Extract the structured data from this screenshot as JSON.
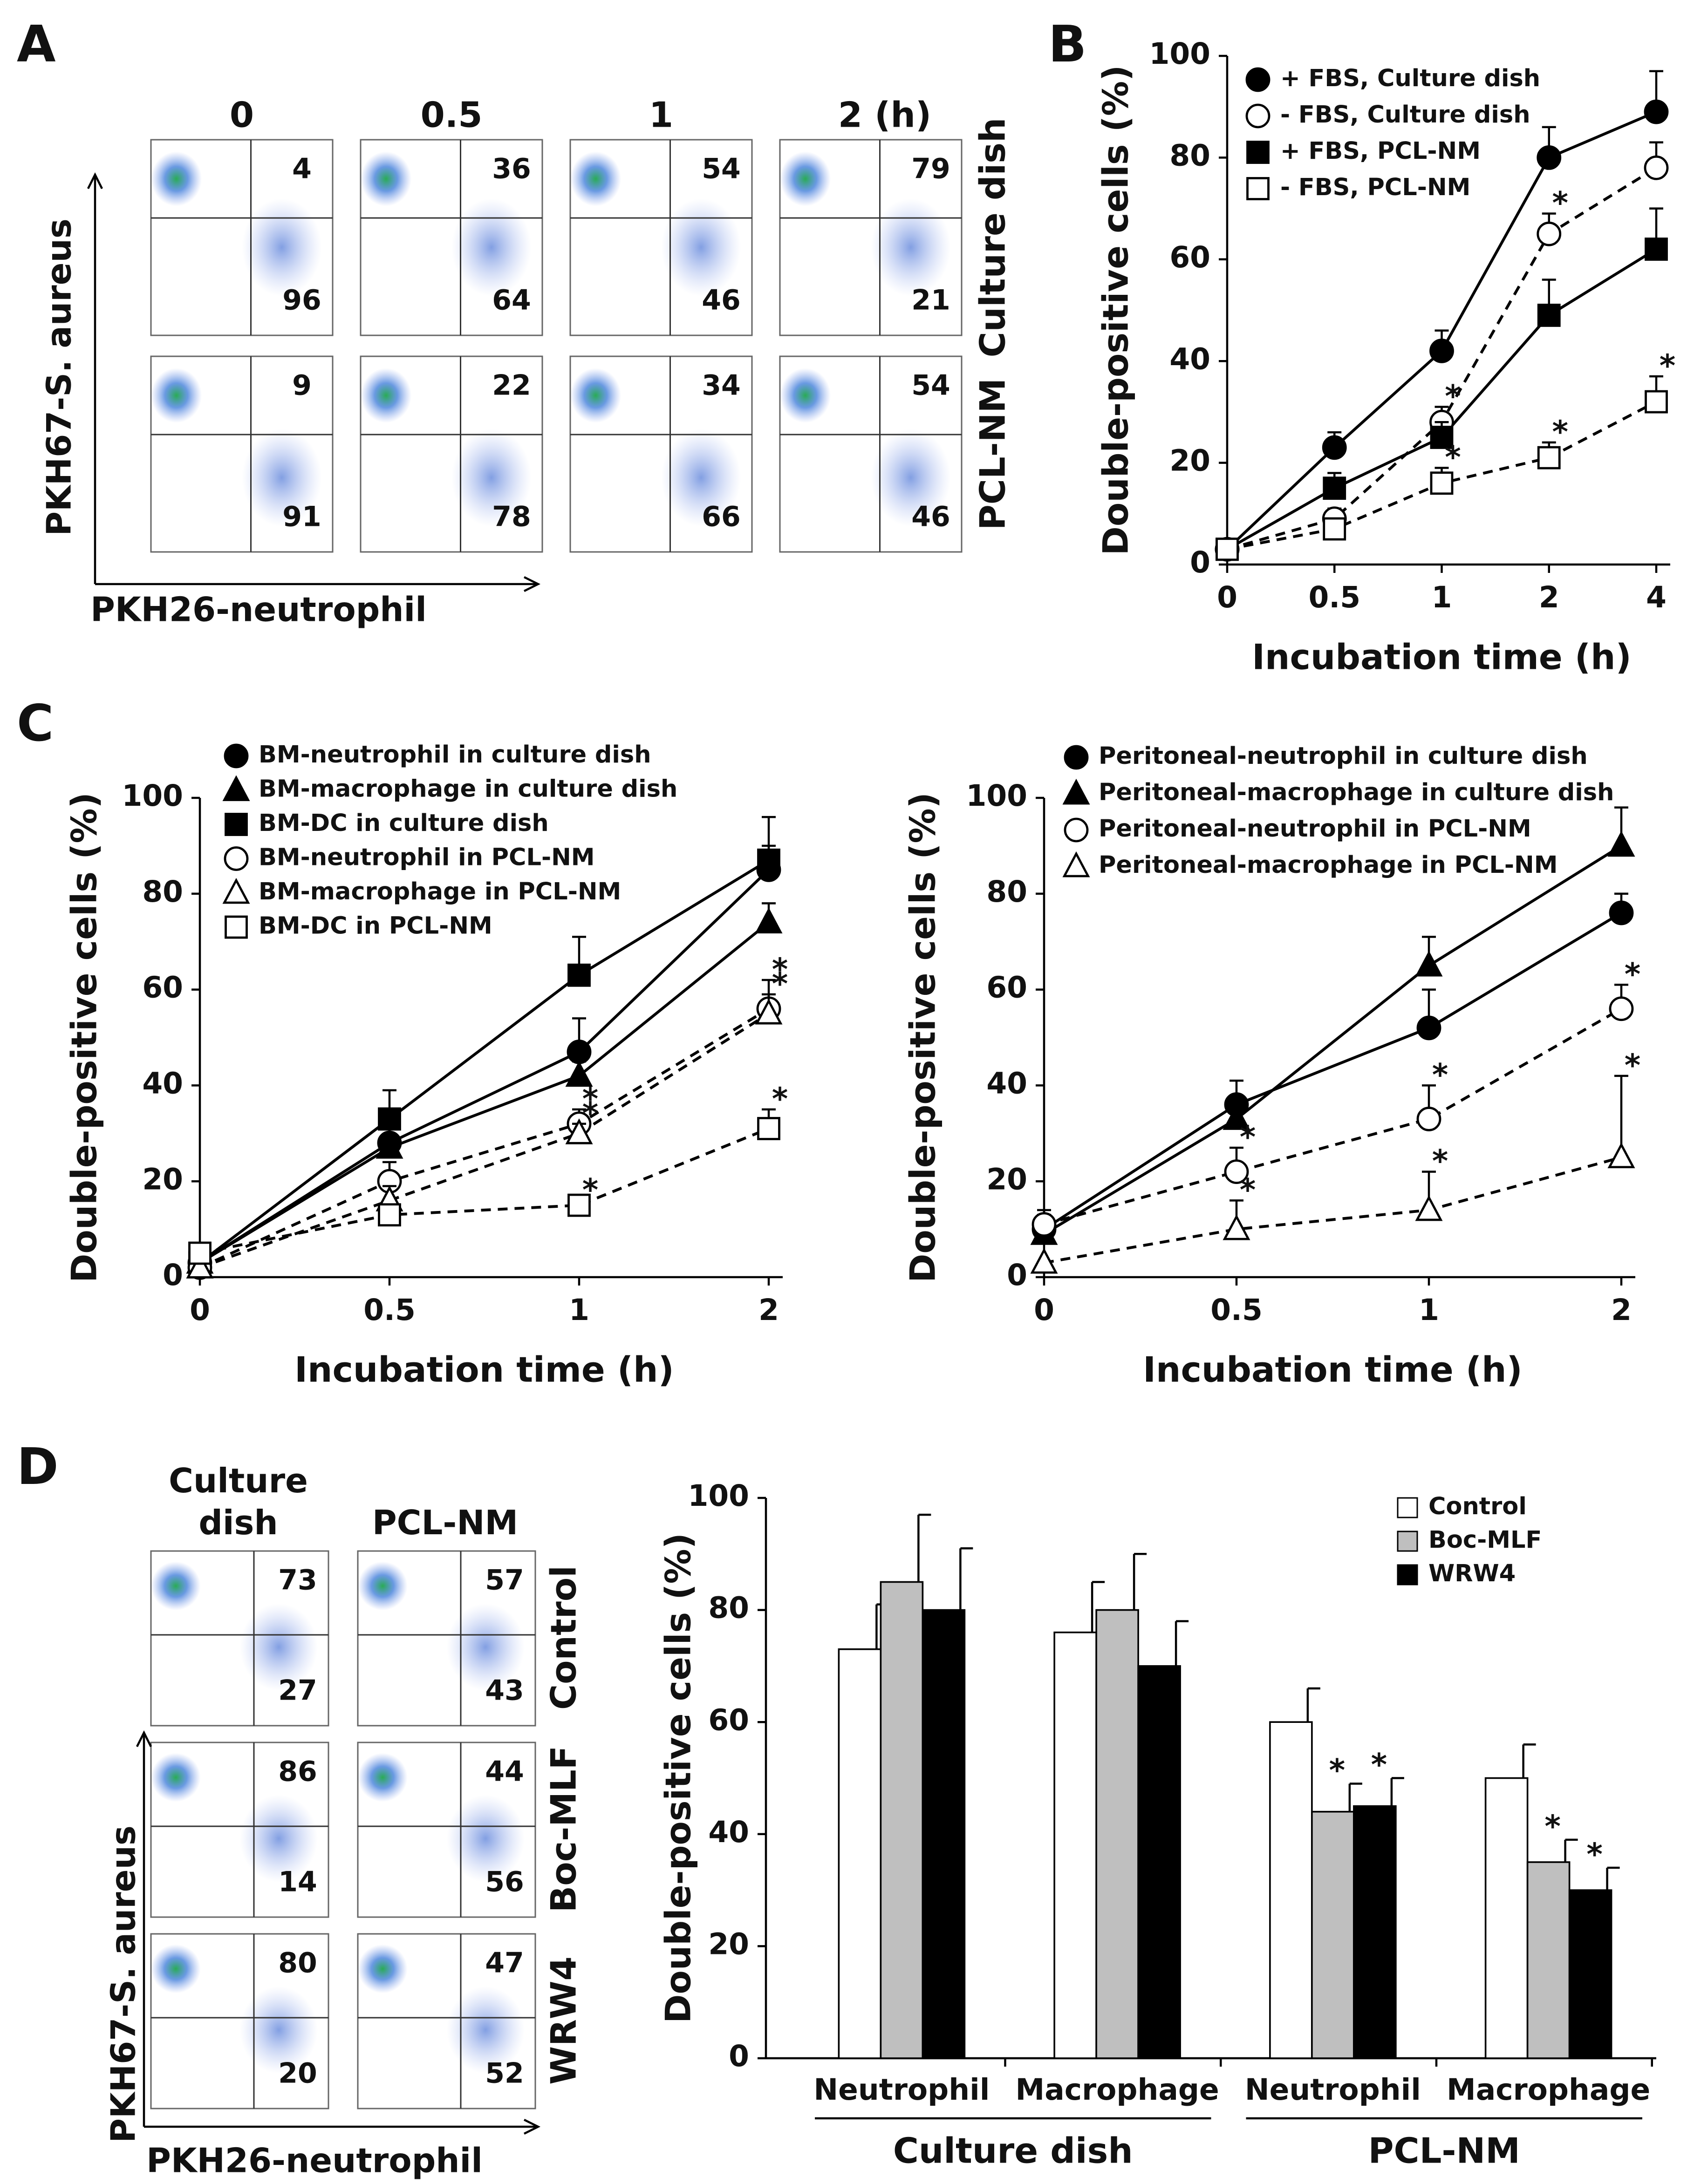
{
  "panel_labels": [
    "A",
    "B",
    "C",
    "D"
  ],
  "panel_a": {
    "columns": [
      "0",
      "0.5",
      "1",
      "2 (h)"
    ],
    "rows": [
      "Culture dish",
      "PCL-NM"
    ],
    "upper": [
      [
        4,
        36,
        54,
        79
      ],
      [
        9,
        22,
        34,
        54
      ]
    ],
    "lower": [
      [
        96,
        64,
        46,
        21
      ],
      [
        91,
        78,
        66,
        46
      ]
    ],
    "ylabel": "PKH67-S. aureus",
    "xlabel": "PKH26-neutrophil"
  },
  "panel_d_flow": {
    "columns": [
      "Culture dish",
      "PCL-NM"
    ],
    "rows": [
      "Control",
      "Boc-MLF",
      "WRW4"
    ],
    "upper": [
      [
        73,
        57
      ],
      [
        86,
        44
      ],
      [
        80,
        47
      ]
    ],
    "lower": [
      [
        27,
        43
      ],
      [
        14,
        56
      ],
      [
        20,
        52
      ]
    ],
    "ylabel": "PKH67-S. aureus",
    "xlabel": "PKH26-neutrophil"
  },
  "chart_data": [
    {
      "type": "line",
      "xlabel": "Incubation time (h)",
      "ylabel": "Double-positive cells (%)",
      "categories": [
        "0",
        "0.5",
        "1",
        "2",
        "4"
      ],
      "ylim": [
        0,
        100
      ],
      "yticks": [
        0,
        20,
        40,
        60,
        80,
        100
      ],
      "series": [
        {
          "name": "+ FBS, Culture dish",
          "color": "#000000",
          "marker": "circle",
          "filled": true,
          "dashed": false,
          "values": [
            3,
            23,
            42,
            80,
            89
          ],
          "errors": [
            0,
            3,
            4,
            6,
            8
          ]
        },
        {
          "name": "- FBS, Culture dish",
          "color": "#000000",
          "marker": "circle",
          "filled": false,
          "dashed": true,
          "values": [
            3,
            9,
            28,
            65,
            78
          ],
          "errors": [
            0,
            2,
            3,
            4,
            5
          ]
        },
        {
          "name": "+ FBS, PCL-NM",
          "color": "#000000",
          "marker": "square",
          "filled": true,
          "dashed": false,
          "values": [
            3,
            15,
            25,
            49,
            62
          ],
          "errors": [
            0,
            3,
            3,
            7,
            8
          ]
        },
        {
          "name": "- FBS, PCL-NM",
          "color": "#000000",
          "marker": "square",
          "filled": false,
          "dashed": true,
          "values": [
            3,
            7,
            16,
            21,
            32
          ],
          "errors": [
            0,
            2,
            3,
            3,
            5
          ]
        }
      ],
      "annotations": [
        {
          "text": "*",
          "series": 1,
          "index": 2
        },
        {
          "text": "*",
          "series": 3,
          "index": 2
        },
        {
          "text": "*",
          "series": 1,
          "index": 3
        },
        {
          "text": "*",
          "series": 3,
          "index": 3
        },
        {
          "text": "*",
          "series": 3,
          "index": 4
        }
      ]
    },
    {
      "type": "line",
      "xlabel": "Incubation time (h)",
      "ylabel": "Double-positive cells (%)",
      "categories": [
        "0",
        "0.5",
        "1",
        "2"
      ],
      "ylim": [
        0,
        100
      ],
      "yticks": [
        0,
        20,
        40,
        60,
        80,
        100
      ],
      "series": [
        {
          "name": "BM-neutrophil in culture dish",
          "color": "#000000",
          "marker": "circle",
          "filled": true,
          "dashed": false,
          "values": [
            3,
            28,
            47,
            85
          ],
          "errors": [
            0,
            4,
            7,
            5
          ]
        },
        {
          "name": "BM-macrophage in culture dish",
          "color": "#000000",
          "marker": "triangle",
          "filled": true,
          "dashed": false,
          "values": [
            3,
            27,
            42,
            74
          ],
          "errors": [
            0,
            4,
            3,
            4
          ]
        },
        {
          "name": "BM-DC in culture dish",
          "color": "#000000",
          "marker": "square",
          "filled": true,
          "dashed": false,
          "values": [
            3,
            33,
            63,
            87
          ],
          "errors": [
            0,
            6,
            8,
            9
          ]
        },
        {
          "name": "BM-neutrophil in PCL-NM",
          "color": "#000000",
          "marker": "circle",
          "filled": false,
          "dashed": true,
          "values": [
            2,
            20,
            32,
            56
          ],
          "errors": [
            0,
            4,
            3,
            6
          ]
        },
        {
          "name": "BM-macrophage in PCL-NM",
          "color": "#000000",
          "marker": "triangle",
          "filled": false,
          "dashed": true,
          "values": [
            2,
            16,
            30,
            55
          ],
          "errors": [
            0,
            3,
            2,
            4
          ]
        },
        {
          "name": "BM-DC in PCL-NM",
          "color": "#000000",
          "marker": "square",
          "filled": false,
          "dashed": true,
          "values": [
            5,
            13,
            15,
            31
          ],
          "errors": [
            0,
            2,
            1,
            4
          ]
        }
      ],
      "annotations": [
        {
          "text": "*",
          "series": 3,
          "index": 2
        },
        {
          "text": "*",
          "series": 4,
          "index": 2
        },
        {
          "text": "*",
          "series": 5,
          "index": 2
        },
        {
          "text": "*",
          "series": 3,
          "index": 3
        },
        {
          "text": "*",
          "series": 4,
          "index": 3
        },
        {
          "text": "*",
          "series": 5,
          "index": 3
        }
      ]
    },
    {
      "type": "line",
      "xlabel": "Incubation time (h)",
      "ylabel": "Double-positive cells (%)",
      "categories": [
        "0",
        "0.5",
        "1",
        "2"
      ],
      "ylim": [
        0,
        100
      ],
      "yticks": [
        0,
        20,
        40,
        60,
        80,
        100
      ],
      "series": [
        {
          "name": "Peritoneal-neutrophil in culture dish",
          "color": "#000000",
          "marker": "circle",
          "filled": true,
          "dashed": false,
          "values": [
            10,
            36,
            52,
            76
          ],
          "errors": [
            3,
            5,
            8,
            4
          ]
        },
        {
          "name": "Peritoneal-macrophage in culture dish",
          "color": "#000000",
          "marker": "triangle",
          "filled": true,
          "dashed": false,
          "values": [
            9,
            33,
            65,
            90
          ],
          "errors": [
            0,
            0,
            6,
            8
          ]
        },
        {
          "name": "Peritoneal-neutrophil in PCL-NM",
          "color": "#000000",
          "marker": "circle",
          "filled": false,
          "dashed": true,
          "values": [
            11,
            22,
            33,
            56
          ],
          "errors": [
            3,
            5,
            7,
            5
          ]
        },
        {
          "name": "Peritoneal-macrophage in PCL-NM",
          "color": "#000000",
          "marker": "triangle",
          "filled": false,
          "dashed": true,
          "values": [
            3,
            10,
            14,
            25
          ],
          "errors": [
            0,
            6,
            8,
            17
          ]
        }
      ],
      "annotations": [
        {
          "text": "*",
          "series": 2,
          "index": 1
        },
        {
          "text": "*",
          "series": 3,
          "index": 1
        },
        {
          "text": "*",
          "series": 2,
          "index": 2
        },
        {
          "text": "*",
          "series": 3,
          "index": 2
        },
        {
          "text": "*",
          "series": 2,
          "index": 3
        },
        {
          "text": "*",
          "series": 3,
          "index": 3
        }
      ]
    },
    {
      "type": "bar",
      "ylabel": "Double-positive cells (%)",
      "categories": [
        "Neutrophil",
        "Macrophage",
        "Neutrophil",
        "Macrophage"
      ],
      "group_labels": [
        "Culture dish",
        "PCL-NM"
      ],
      "ylim": [
        0,
        100
      ],
      "yticks": [
        0,
        20,
        40,
        60,
        80,
        100
      ],
      "legend": "upper right",
      "series": [
        {
          "name": "Control",
          "color": "#ffffff",
          "values": [
            73,
            76,
            60,
            50
          ],
          "errors": [
            8,
            9,
            6,
            6
          ]
        },
        {
          "name": "Boc-MLF",
          "color": "#bfbfbf",
          "values": [
            85,
            80,
            44,
            35
          ],
          "errors": [
            12,
            10,
            5,
            4
          ]
        },
        {
          "name": "WRW4",
          "color": "#000000",
          "values": [
            80,
            70,
            45,
            30
          ],
          "errors": [
            11,
            8,
            5,
            4
          ]
        }
      ],
      "annotations": [
        {
          "text": "*",
          "series": 1,
          "index": 2
        },
        {
          "text": "*",
          "series": 2,
          "index": 2
        },
        {
          "text": "*",
          "series": 1,
          "index": 3
        },
        {
          "text": "*",
          "series": 2,
          "index": 3
        }
      ]
    }
  ]
}
